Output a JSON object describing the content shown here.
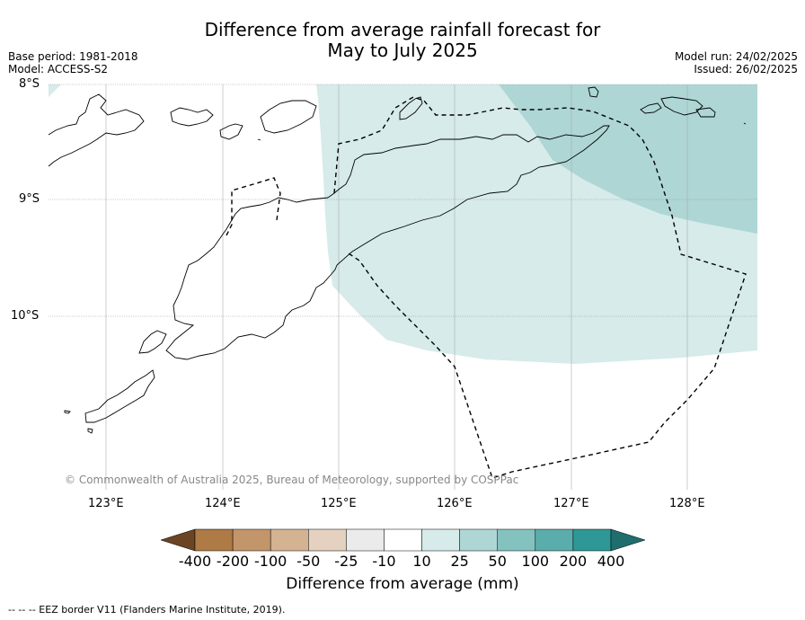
{
  "title_line1": "Difference from average rainfall forecast for",
  "title_line2": "May to July 2025",
  "base_period": "Base period: 1981-2018",
  "model": "Model: ACCESS-S2",
  "model_run": "Model run: 24/02/2025",
  "issued": "Issued: 26/02/2025",
  "latitudes": [
    "8°S",
    "9°S",
    "10°S"
  ],
  "longitudes": [
    "123°E",
    "124°E",
    "125°E",
    "126°E",
    "127°E",
    "128°E"
  ],
  "copyright": "© Commonwealth of Australia 2025, Bureau of Meteorology, supported by COSPPac",
  "colorbar": {
    "labels": [
      "-400",
      "-200",
      "-100",
      "-50",
      "-25",
      "-10",
      "10",
      "25",
      "50",
      "100",
      "200",
      "400"
    ],
    "colors": [
      "#6b4423",
      "#ae7a45",
      "#c2956a",
      "#d3b392",
      "#e4d1bf",
      "#ebebeb",
      "#ffffff",
      "#d6ebea",
      "#add6d5",
      "#84c2c0",
      "#5aadab",
      "#2e9896",
      "#1f6e6d"
    ],
    "title": "Difference from average (mm)"
  },
  "footer": "--  --  -- EEZ border V11 (Flanders Marine Institute, 2019).",
  "colors": {
    "light_teal": "#d6ebea",
    "mid_teal": "#add6d5",
    "grid": "#aaaaaa",
    "coast": "#000000"
  }
}
